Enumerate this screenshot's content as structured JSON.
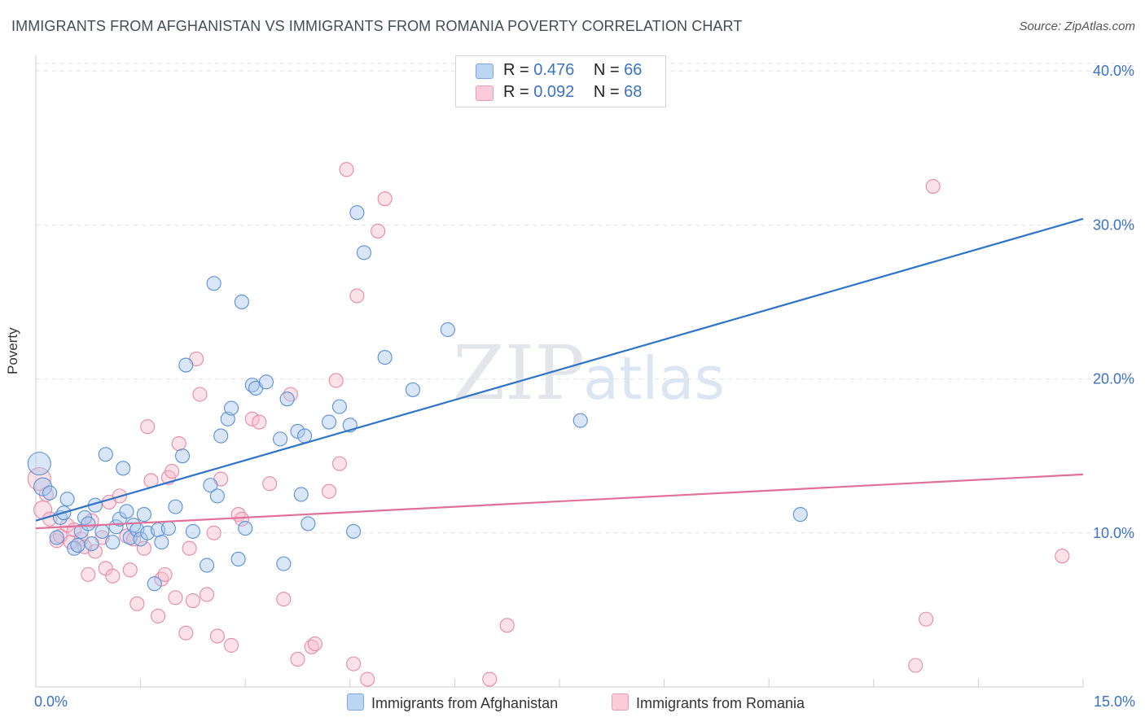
{
  "header": {
    "title": "IMMIGRANTS FROM AFGHANISTAN VS IMMIGRANTS FROM ROMANIA POVERTY CORRELATION CHART",
    "source": "Source: ZipAtlas.com"
  },
  "watermark": {
    "zip": "ZIP",
    "atlas": "atlas"
  },
  "legend": {
    "rows": [
      {
        "r_label": "R = ",
        "r_value": "0.476",
        "n_label": "N = ",
        "n_value": "66"
      },
      {
        "r_label": "R = ",
        "r_value": "0.092",
        "n_label": "N = ",
        "n_value": "68"
      }
    ]
  },
  "colors": {
    "afghanistan_fill": "#a9c8ee",
    "afghanistan_stroke": "#5b8fd6",
    "afghanistan_line": "#2f74c8",
    "romania_fill": "#f7bccd",
    "romania_stroke": "#e58aa8",
    "romania_line": "#e0709a",
    "tick_label": "#3a72c4",
    "grid": "#dde1e6"
  },
  "chart_data": {
    "type": "scatter",
    "title": "IMMIGRANTS FROM AFGHANISTAN VS IMMIGRANTS FROM ROMANIA POVERTY CORRELATION CHART",
    "xlabel": "",
    "ylabel": "Poverty",
    "xlim": [
      0,
      15
    ],
    "ylim": [
      0,
      40.8
    ],
    "x_tick_labels": [
      "0.0%",
      "15.0%"
    ],
    "y_ticks": [
      10,
      20,
      30,
      40
    ],
    "y_tick_labels": [
      "10.0%",
      "20.0%",
      "30.0%",
      "40.0%"
    ],
    "grid": true,
    "legend_position": "top-center",
    "series": [
      {
        "name": "Immigrants from Afghanistan",
        "R": 0.476,
        "N": 66,
        "trend": {
          "x": [
            0.0,
            15.0
          ],
          "y": [
            10.8,
            30.4
          ]
        },
        "points": [
          [
            0.05,
            14.5,
            3
          ],
          [
            0.1,
            13.0,
            2
          ],
          [
            0.2,
            12.6,
            1
          ],
          [
            0.3,
            9.7,
            1
          ],
          [
            0.35,
            11.0,
            1
          ],
          [
            0.4,
            11.3,
            1
          ],
          [
            0.45,
            12.2,
            1
          ],
          [
            0.55,
            9.0,
            1
          ],
          [
            0.6,
            9.2,
            1
          ],
          [
            0.65,
            10.1,
            1
          ],
          [
            0.7,
            11.0,
            1
          ],
          [
            0.75,
            10.6,
            1
          ],
          [
            0.8,
            9.3,
            1
          ],
          [
            0.85,
            11.8,
            1
          ],
          [
            0.95,
            10.1,
            1
          ],
          [
            1.0,
            15.1,
            1
          ],
          [
            1.1,
            9.4,
            1
          ],
          [
            1.15,
            10.4,
            1
          ],
          [
            1.2,
            10.9,
            1
          ],
          [
            1.25,
            14.2,
            1
          ],
          [
            1.3,
            11.4,
            1
          ],
          [
            1.35,
            9.7,
            1
          ],
          [
            1.4,
            10.5,
            1
          ],
          [
            1.45,
            10.2,
            1
          ],
          [
            1.5,
            9.6,
            1
          ],
          [
            1.55,
            11.2,
            1
          ],
          [
            1.6,
            10.0,
            1
          ],
          [
            1.7,
            6.7,
            1
          ],
          [
            1.75,
            10.2,
            1
          ],
          [
            1.8,
            9.4,
            1
          ],
          [
            1.9,
            10.3,
            1
          ],
          [
            2.0,
            11.7,
            1
          ],
          [
            2.1,
            15.0,
            1
          ],
          [
            2.15,
            20.9,
            1
          ],
          [
            2.25,
            10.1,
            1
          ],
          [
            2.45,
            7.9,
            1
          ],
          [
            2.5,
            13.1,
            1
          ],
          [
            2.55,
            26.2,
            1
          ],
          [
            2.6,
            12.4,
            1
          ],
          [
            2.65,
            16.3,
            1
          ],
          [
            2.75,
            17.4,
            1
          ],
          [
            2.8,
            18.1,
            1
          ],
          [
            2.9,
            8.3,
            1
          ],
          [
            2.95,
            25.0,
            1
          ],
          [
            3.0,
            10.3,
            1
          ],
          [
            3.1,
            19.6,
            1
          ],
          [
            3.15,
            19.4,
            1
          ],
          [
            3.3,
            19.8,
            1
          ],
          [
            3.5,
            16.1,
            1
          ],
          [
            3.55,
            8.0,
            1
          ],
          [
            3.6,
            18.7,
            1
          ],
          [
            3.75,
            16.6,
            1
          ],
          [
            3.8,
            12.5,
            1
          ],
          [
            3.85,
            16.3,
            1
          ],
          [
            3.9,
            10.6,
            1
          ],
          [
            4.2,
            17.2,
            1
          ],
          [
            4.35,
            18.2,
            1
          ],
          [
            4.5,
            17.0,
            1
          ],
          [
            4.55,
            10.1,
            1
          ],
          [
            4.6,
            30.8,
            1
          ],
          [
            4.7,
            28.2,
            1
          ],
          [
            5.0,
            21.4,
            1
          ],
          [
            5.4,
            19.3,
            1
          ],
          [
            5.9,
            23.2,
            1
          ],
          [
            7.8,
            17.3,
            1
          ],
          [
            10.95,
            11.2,
            1
          ]
        ]
      },
      {
        "name": "Immigrants from Romania",
        "R": 0.092,
        "N": 68,
        "trend": {
          "x": [
            0.0,
            15.0
          ],
          "y": [
            10.3,
            13.8
          ]
        },
        "points": [
          [
            0.05,
            13.5,
            3
          ],
          [
            0.1,
            11.5,
            2
          ],
          [
            0.15,
            12.5,
            1
          ],
          [
            0.2,
            10.9,
            1
          ],
          [
            0.3,
            9.5,
            1
          ],
          [
            0.35,
            9.8,
            1
          ],
          [
            0.45,
            10.5,
            1
          ],
          [
            0.5,
            9.4,
            1
          ],
          [
            0.55,
            10.2,
            1
          ],
          [
            0.65,
            9.6,
            1
          ],
          [
            0.7,
            9.1,
            1
          ],
          [
            0.75,
            7.3,
            1
          ],
          [
            0.8,
            10.8,
            1
          ],
          [
            0.85,
            8.8,
            1
          ],
          [
            0.95,
            9.7,
            1
          ],
          [
            1.0,
            7.7,
            1
          ],
          [
            1.05,
            12.0,
            1
          ],
          [
            1.1,
            7.2,
            1
          ],
          [
            1.2,
            12.4,
            1
          ],
          [
            1.3,
            9.8,
            1
          ],
          [
            1.35,
            7.6,
            1
          ],
          [
            1.4,
            9.6,
            1
          ],
          [
            1.45,
            5.4,
            1
          ],
          [
            1.55,
            9.0,
            1
          ],
          [
            1.6,
            16.9,
            1
          ],
          [
            1.65,
            13.4,
            1
          ],
          [
            1.75,
            4.6,
            1
          ],
          [
            1.8,
            7.0,
            1
          ],
          [
            1.85,
            7.3,
            1
          ],
          [
            1.9,
            13.6,
            1
          ],
          [
            1.95,
            14.0,
            1
          ],
          [
            2.0,
            5.8,
            1
          ],
          [
            2.05,
            15.8,
            1
          ],
          [
            2.15,
            3.5,
            1
          ],
          [
            2.2,
            9.0,
            1
          ],
          [
            2.25,
            5.6,
            1
          ],
          [
            2.3,
            21.3,
            1
          ],
          [
            2.35,
            19.0,
            1
          ],
          [
            2.45,
            6.0,
            1
          ],
          [
            2.55,
            10.0,
            1
          ],
          [
            2.6,
            3.3,
            1
          ],
          [
            2.65,
            13.5,
            1
          ],
          [
            2.8,
            2.7,
            1
          ],
          [
            2.9,
            11.2,
            1
          ],
          [
            2.95,
            10.9,
            1
          ],
          [
            3.1,
            17.4,
            1
          ],
          [
            3.2,
            17.2,
            1
          ],
          [
            3.35,
            13.2,
            1
          ],
          [
            3.55,
            5.7,
            1
          ],
          [
            3.65,
            19.0,
            1
          ],
          [
            3.75,
            1.8,
            1
          ],
          [
            3.95,
            2.6,
            1
          ],
          [
            4.0,
            2.8,
            1
          ],
          [
            4.2,
            12.7,
            1
          ],
          [
            4.3,
            19.9,
            1
          ],
          [
            4.35,
            14.5,
            1
          ],
          [
            4.45,
            33.6,
            1
          ],
          [
            4.55,
            1.5,
            1
          ],
          [
            4.6,
            25.4,
            1
          ],
          [
            4.75,
            0.5,
            1
          ],
          [
            5.0,
            31.7,
            1
          ],
          [
            4.9,
            29.6,
            1
          ],
          [
            6.5,
            0.5,
            1
          ],
          [
            6.75,
            4.0,
            1
          ],
          [
            12.6,
            1.4,
            1
          ],
          [
            12.75,
            4.4,
            1
          ],
          [
            12.85,
            32.5,
            1
          ],
          [
            14.7,
            8.5,
            1
          ]
        ]
      }
    ]
  }
}
